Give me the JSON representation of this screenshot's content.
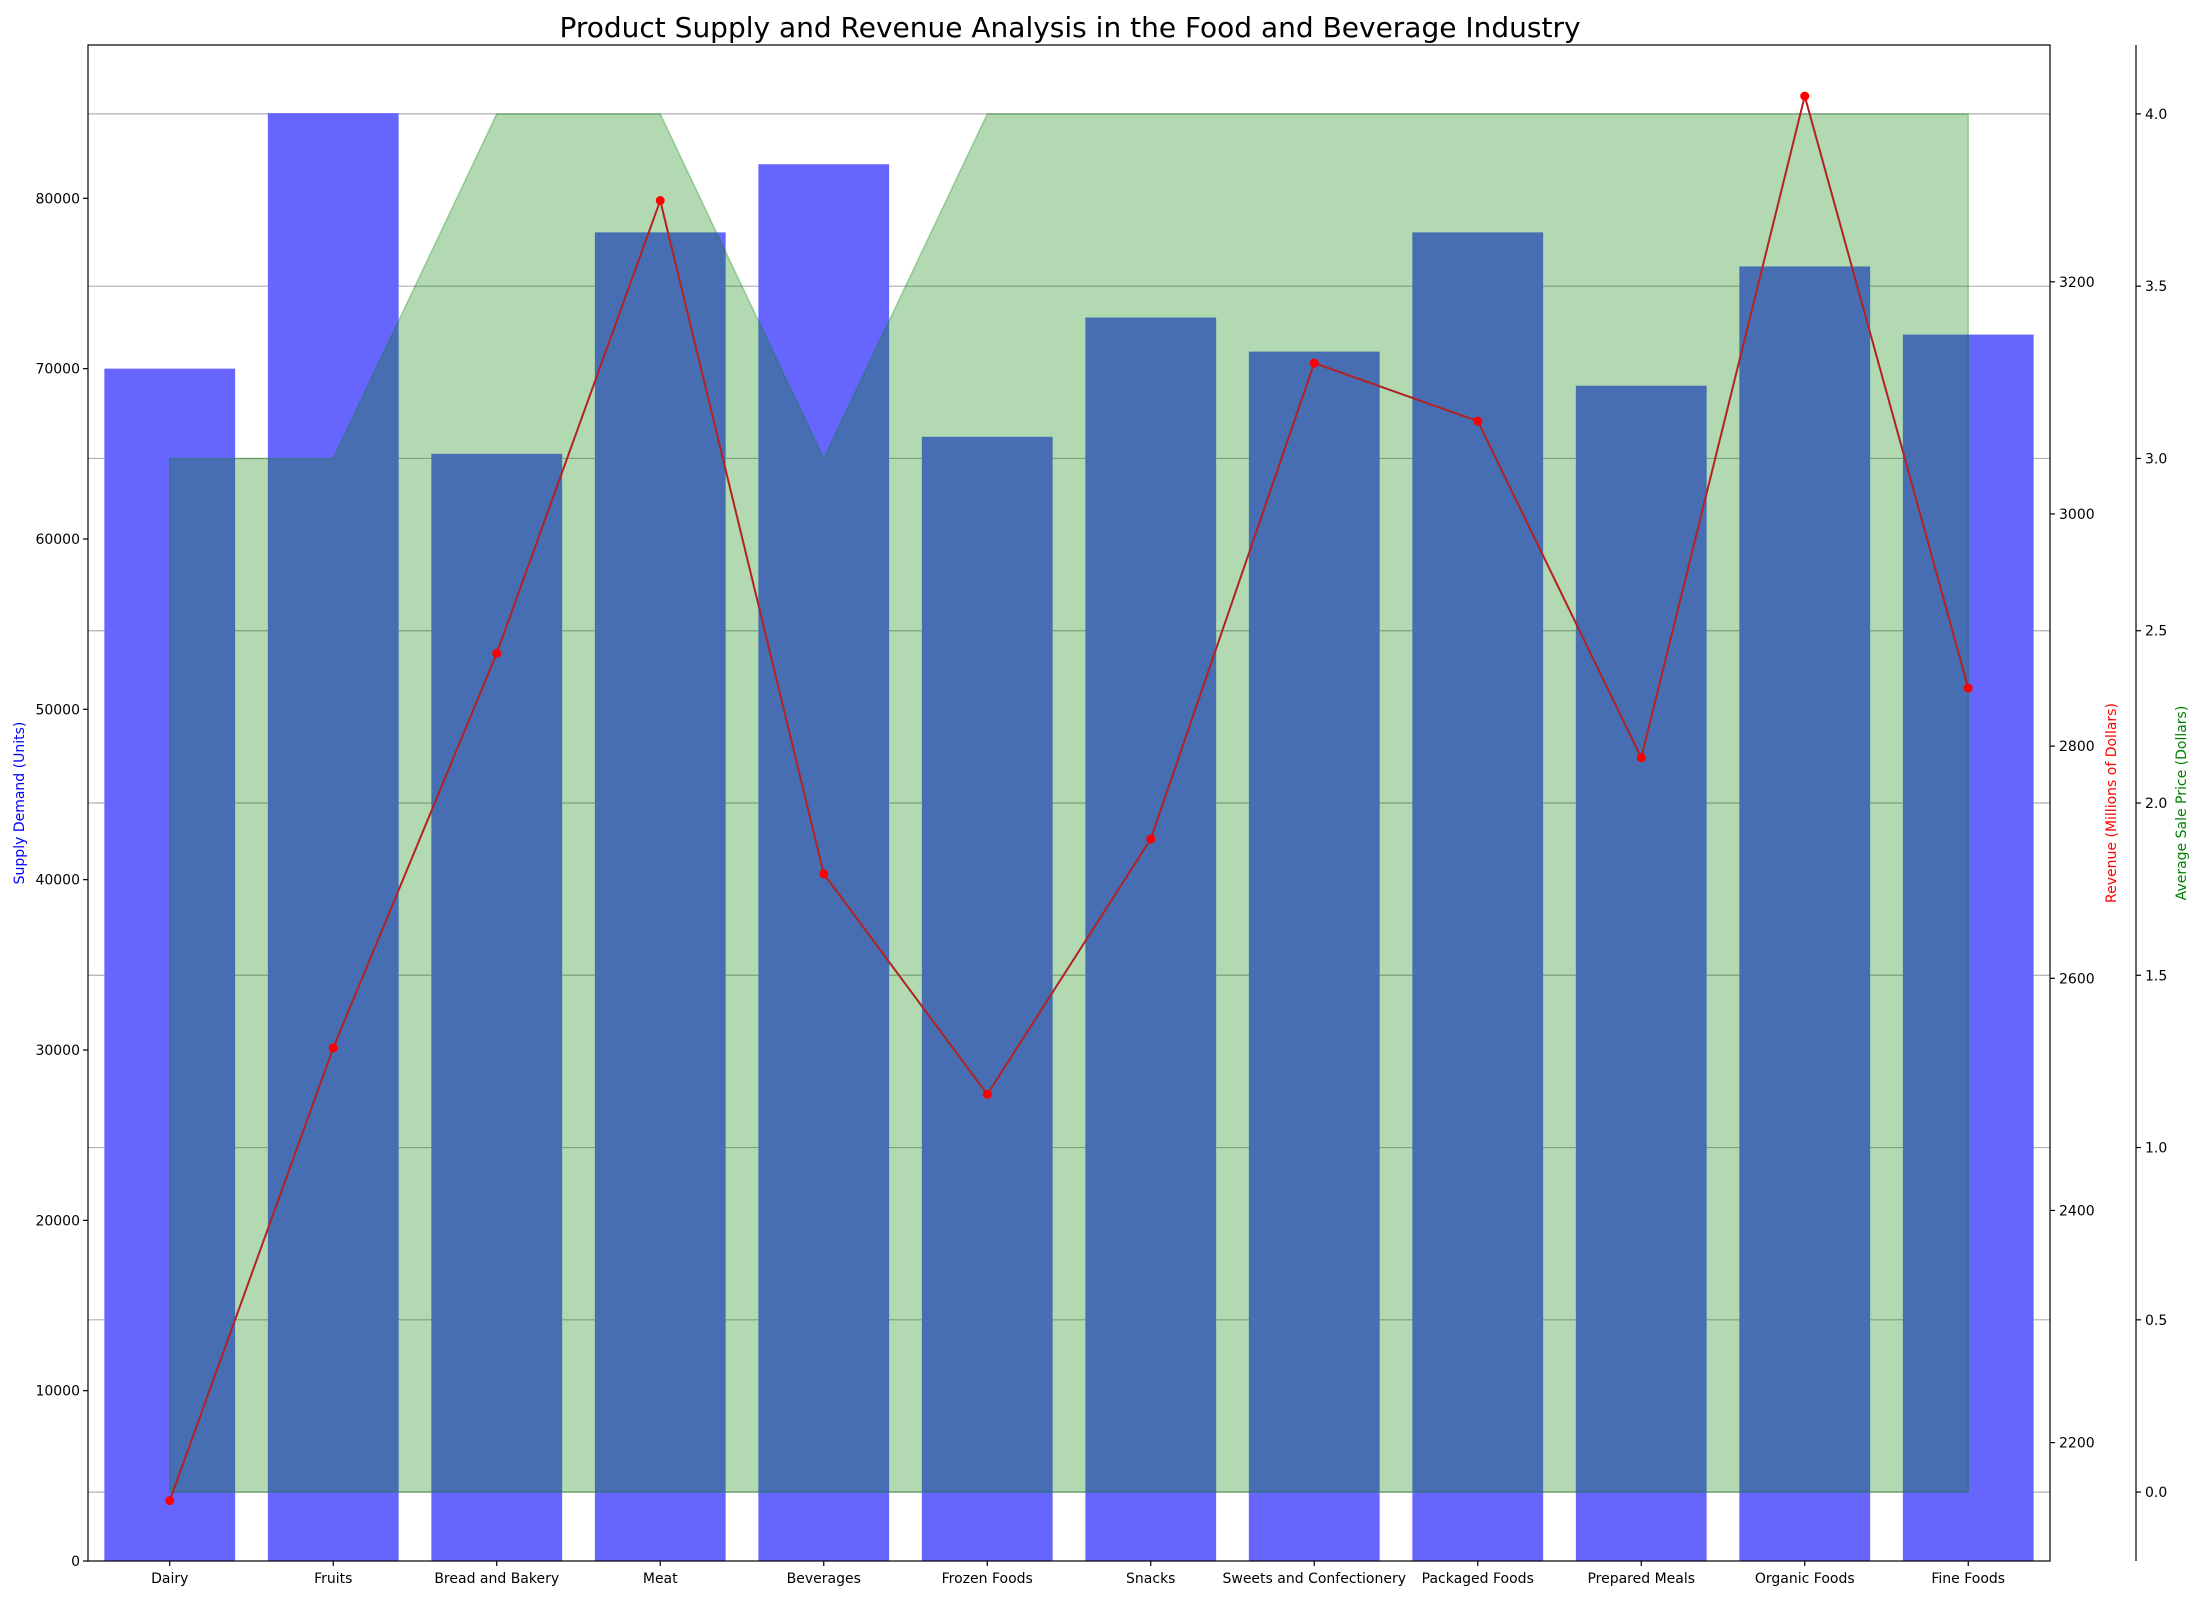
{
  "chart_data": {
    "type": "bar",
    "title": "Product Supply and Revenue Analysis in the Food and Beverage Industry",
    "categories": [
      "Dairy",
      "Fruits",
      "Bread and Bakery",
      "Meat",
      "Beverages",
      "Frozen Foods",
      "Snacks",
      "Sweets and Confectionery",
      "Packaged Foods",
      "Prepared Meals",
      "Organic Foods",
      "Fine Foods"
    ],
    "series": [
      {
        "name": "Supply Demand (Units)",
        "type": "bar",
        "axis": "left",
        "color": "#6666ff",
        "values": [
          70000,
          85000,
          65000,
          78000,
          82000,
          66000,
          73000,
          71000,
          78000,
          69000,
          76000,
          72000
        ]
      },
      {
        "name": "Revenue (Millions of Dollars)",
        "type": "line",
        "axis": "right",
        "color": "#b22222",
        "marker_color": "#ff0000",
        "values": [
          2150,
          2540,
          2880,
          3270,
          2690,
          2500,
          2720,
          3130,
          3080,
          2790,
          3360,
          2850
        ]
      },
      {
        "name": "Average Sale Price (Dollars)",
        "type": "area",
        "axis": "right2",
        "color": "#008000",
        "values": [
          3.0,
          3.0,
          4.0,
          4.0,
          3.0,
          4.0,
          4.0,
          4.0,
          4.0,
          4.0,
          4.0,
          4.0
        ]
      }
    ],
    "axes": {
      "left": {
        "label": "Supply Demand (Units)",
        "color": "#0000ff",
        "range": [
          0,
          89000
        ],
        "ticks": [
          0,
          10000,
          20000,
          30000,
          40000,
          50000,
          60000,
          70000,
          80000
        ]
      },
      "right": {
        "label": "Revenue (Millions of Dollars)",
        "color": "#ff0000",
        "range": [
          2098,
          3404
        ],
        "ticks": [
          2200,
          2400,
          2600,
          2800,
          3000,
          3200
        ]
      },
      "right2": {
        "label": "Average Sale Price (Dollars)",
        "color": "#008000",
        "range": [
          -0.2,
          4.2
        ],
        "ticks": [
          0.0,
          0.5,
          1.0,
          1.5,
          2.0,
          2.5,
          3.0,
          3.5,
          4.0
        ],
        "tick_labels": [
          "0.0",
          "0.5",
          "1.0",
          "1.5",
          "2.0",
          "2.5",
          "3.0",
          "3.5",
          "4.0"
        ]
      }
    },
    "grid": "horizontal lines on price axis",
    "legend": "none"
  }
}
